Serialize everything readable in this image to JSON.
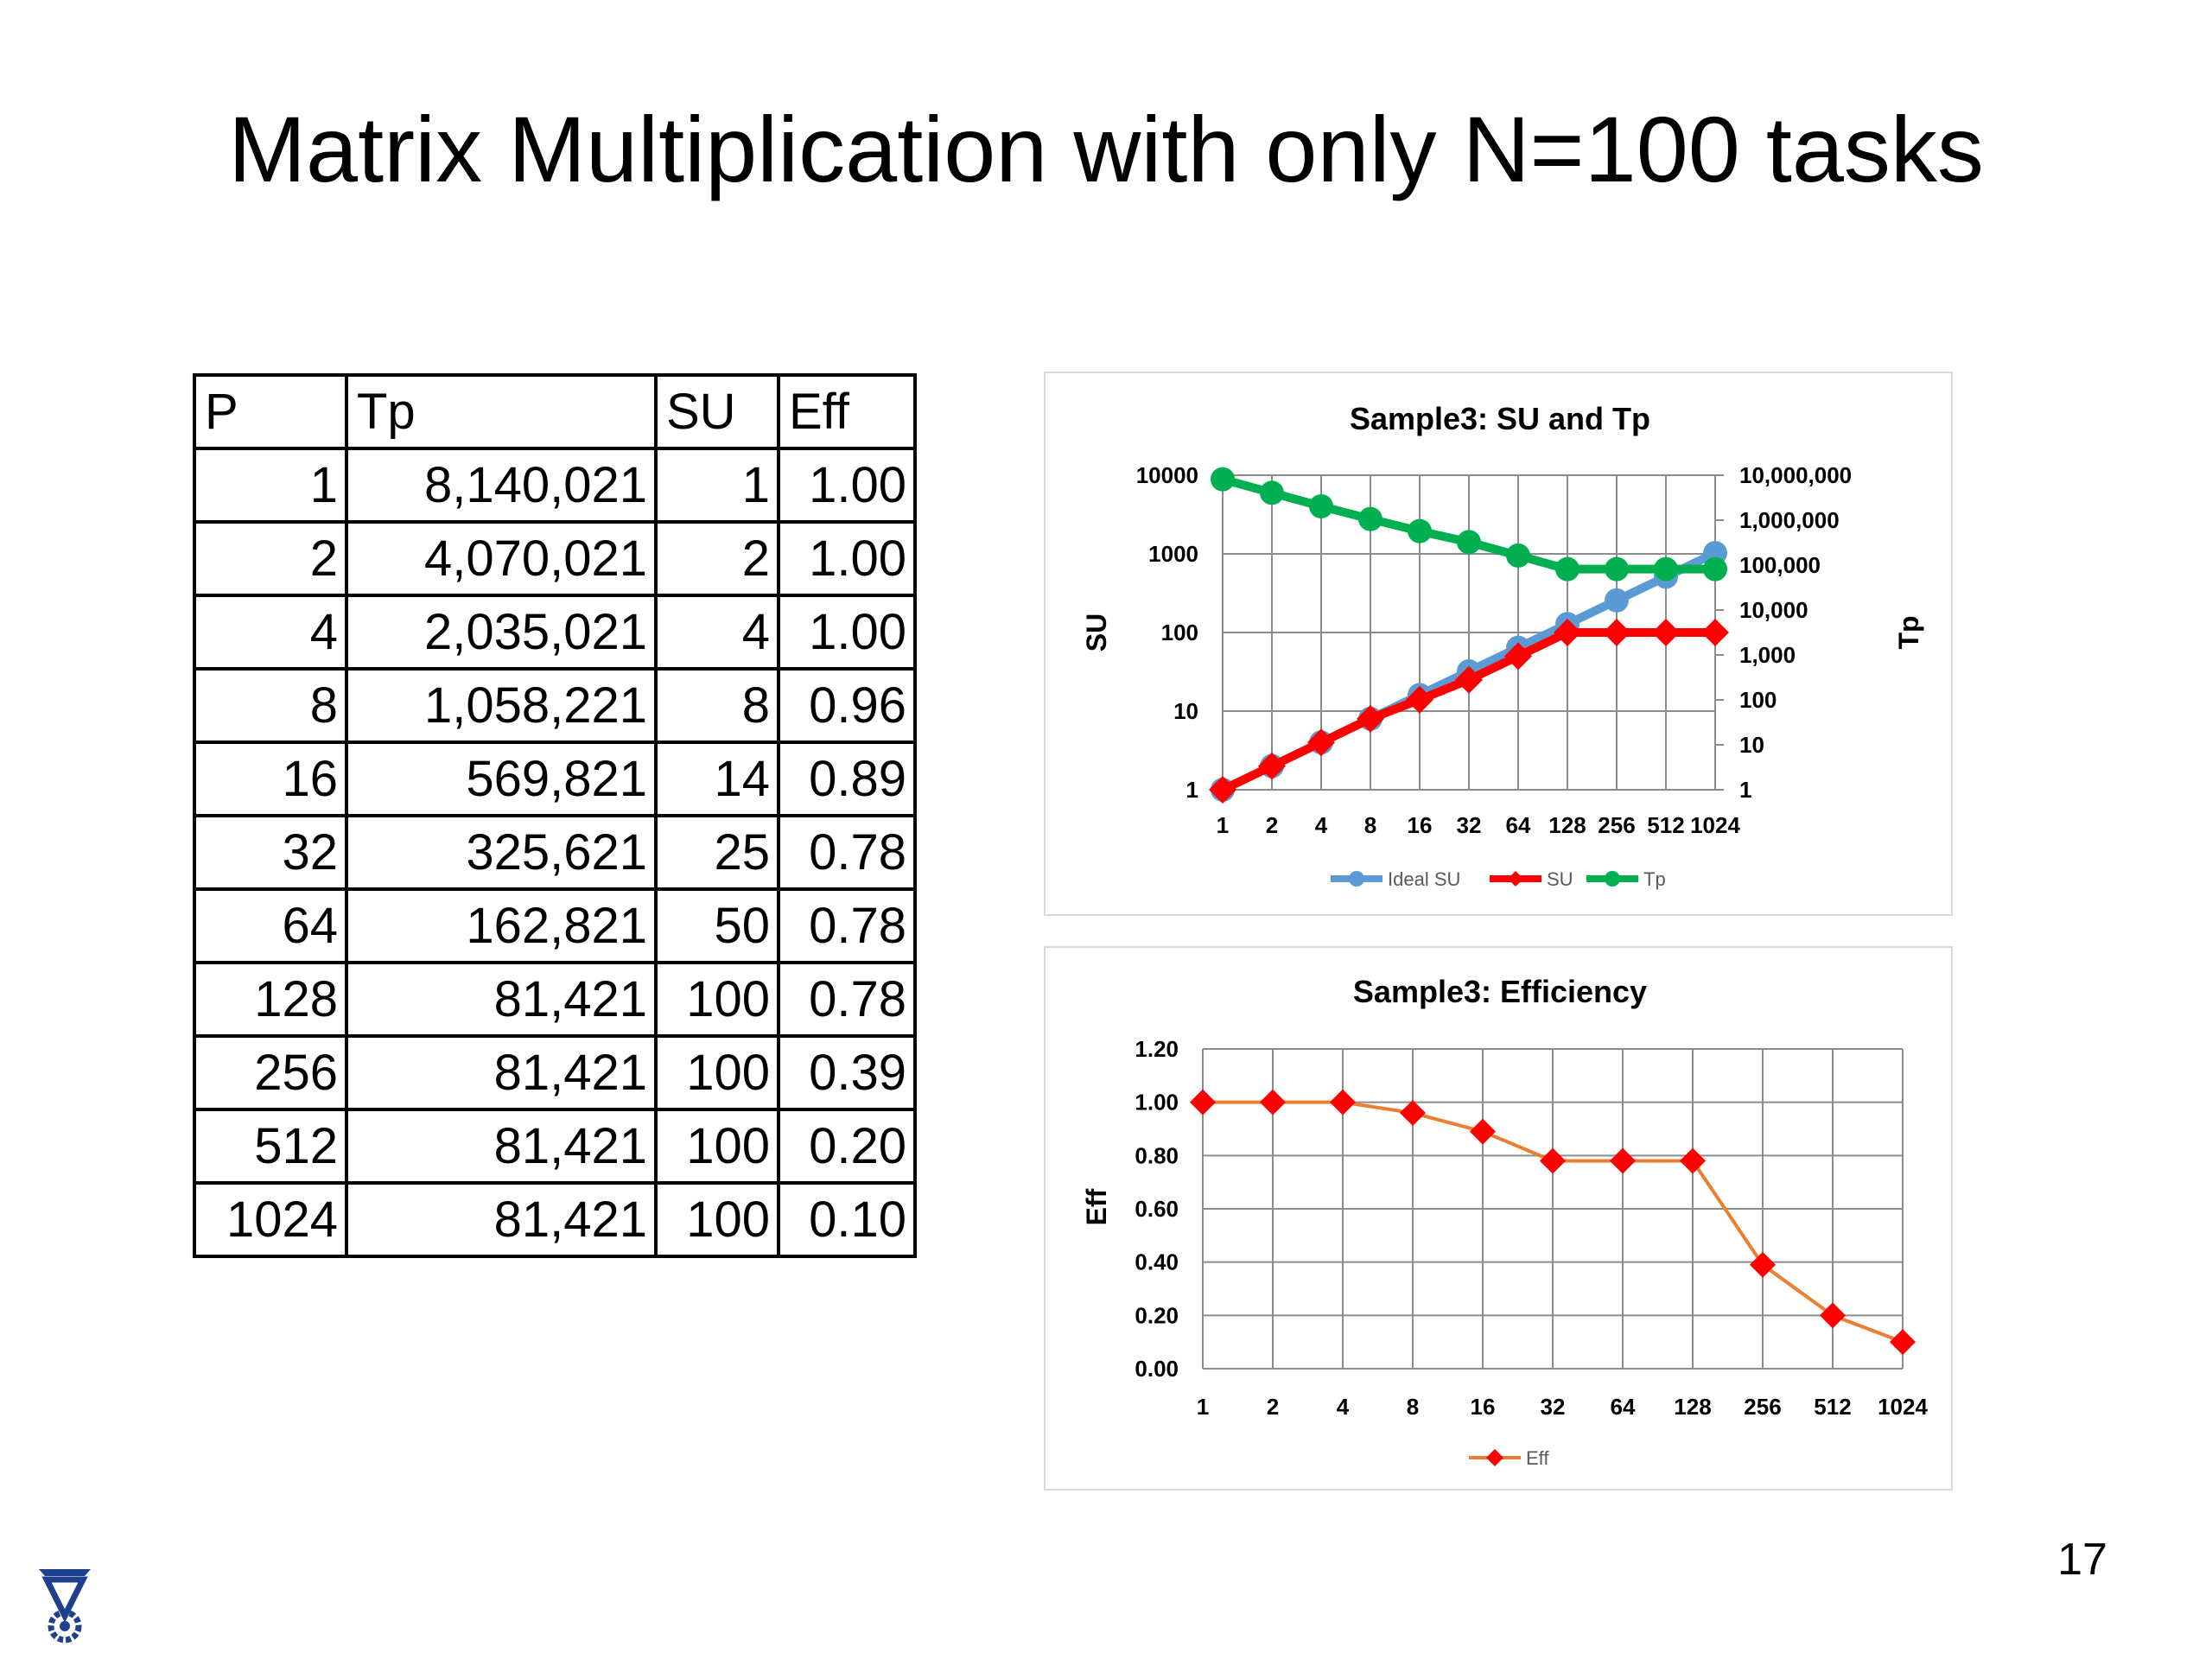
{
  "slide": {
    "title": "Matrix Multiplication with only N=100 tasks",
    "page_number": "17"
  },
  "table": {
    "headers": [
      "P",
      "Tp",
      "SU",
      "Eff"
    ],
    "rows": [
      [
        "1",
        "8,140,021",
        "1",
        "1.00"
      ],
      [
        "2",
        "4,070,021",
        "2",
        "1.00"
      ],
      [
        "4",
        "2,035,021",
        "4",
        "1.00"
      ],
      [
        "8",
        "1,058,221",
        "8",
        "0.96"
      ],
      [
        "16",
        "569,821",
        "14",
        "0.89"
      ],
      [
        "32",
        "325,621",
        "25",
        "0.78"
      ],
      [
        "64",
        "162,821",
        "50",
        "0.78"
      ],
      [
        "128",
        "81,421",
        "100",
        "0.78"
      ],
      [
        "256",
        "81,421",
        "100",
        "0.39"
      ],
      [
        "512",
        "81,421",
        "100",
        "0.20"
      ],
      [
        "1024",
        "81,421",
        "100",
        "0.10"
      ]
    ]
  },
  "logo": {
    "icon": "technion-logo-icon",
    "color": "#1f3f8f"
  },
  "chart_data": [
    {
      "type": "line",
      "title": "Sample3:  SU and Tp",
      "xlabel": "",
      "ylabel": "SU",
      "y2label": "Tp",
      "categories": [
        "1",
        "2",
        "4",
        "8",
        "16",
        "32",
        "64",
        "128",
        "256",
        "512",
        "1024"
      ],
      "y_scale": "log",
      "ylim": [
        1,
        10000
      ],
      "yticks": [
        "1",
        "10",
        "100",
        "1000",
        "10000"
      ],
      "y2_scale": "log",
      "y2lim": [
        1,
        10000000
      ],
      "y2ticks": [
        "1",
        "10",
        "100",
        "1,000",
        "10,000",
        "100,000",
        "1,000,000",
        "10,000,000"
      ],
      "grid": true,
      "legend": "bottom",
      "series": [
        {
          "name": "Ideal SU",
          "axis": "left",
          "color": "#5b9bd5",
          "marker": "circle",
          "values": [
            1,
            2,
            4,
            8,
            16,
            32,
            64,
            128,
            256,
            512,
            1024
          ]
        },
        {
          "name": "SU",
          "axis": "left",
          "color": "#ff0000",
          "marker": "diamond",
          "values": [
            1,
            2,
            4,
            8,
            14,
            25,
            50,
            100,
            100,
            100,
            100
          ]
        },
        {
          "name": "Tp",
          "axis": "right",
          "color": "#00b050",
          "marker": "circle",
          "values": [
            8140021,
            4070021,
            2035021,
            1058221,
            569821,
            325621,
            162821,
            81421,
            81421,
            81421,
            81421
          ]
        }
      ]
    },
    {
      "type": "line",
      "title": "Sample3: Efficiency",
      "xlabel": "",
      "ylabel": "Eff",
      "categories": [
        "1",
        "2",
        "4",
        "8",
        "16",
        "32",
        "64",
        "128",
        "256",
        "512",
        "1024"
      ],
      "ylim": [
        0,
        1.2
      ],
      "yticks": [
        "0.00",
        "0.20",
        "0.40",
        "0.60",
        "0.80",
        "1.00",
        "1.20"
      ],
      "grid": true,
      "legend": "bottom",
      "series": [
        {
          "name": "Eff",
          "color": "#ed7d31",
          "marker_color": "#ff0000",
          "marker": "diamond",
          "values": [
            1.0,
            1.0,
            1.0,
            0.96,
            0.89,
            0.78,
            0.78,
            0.78,
            0.39,
            0.2,
            0.1
          ]
        }
      ]
    }
  ]
}
